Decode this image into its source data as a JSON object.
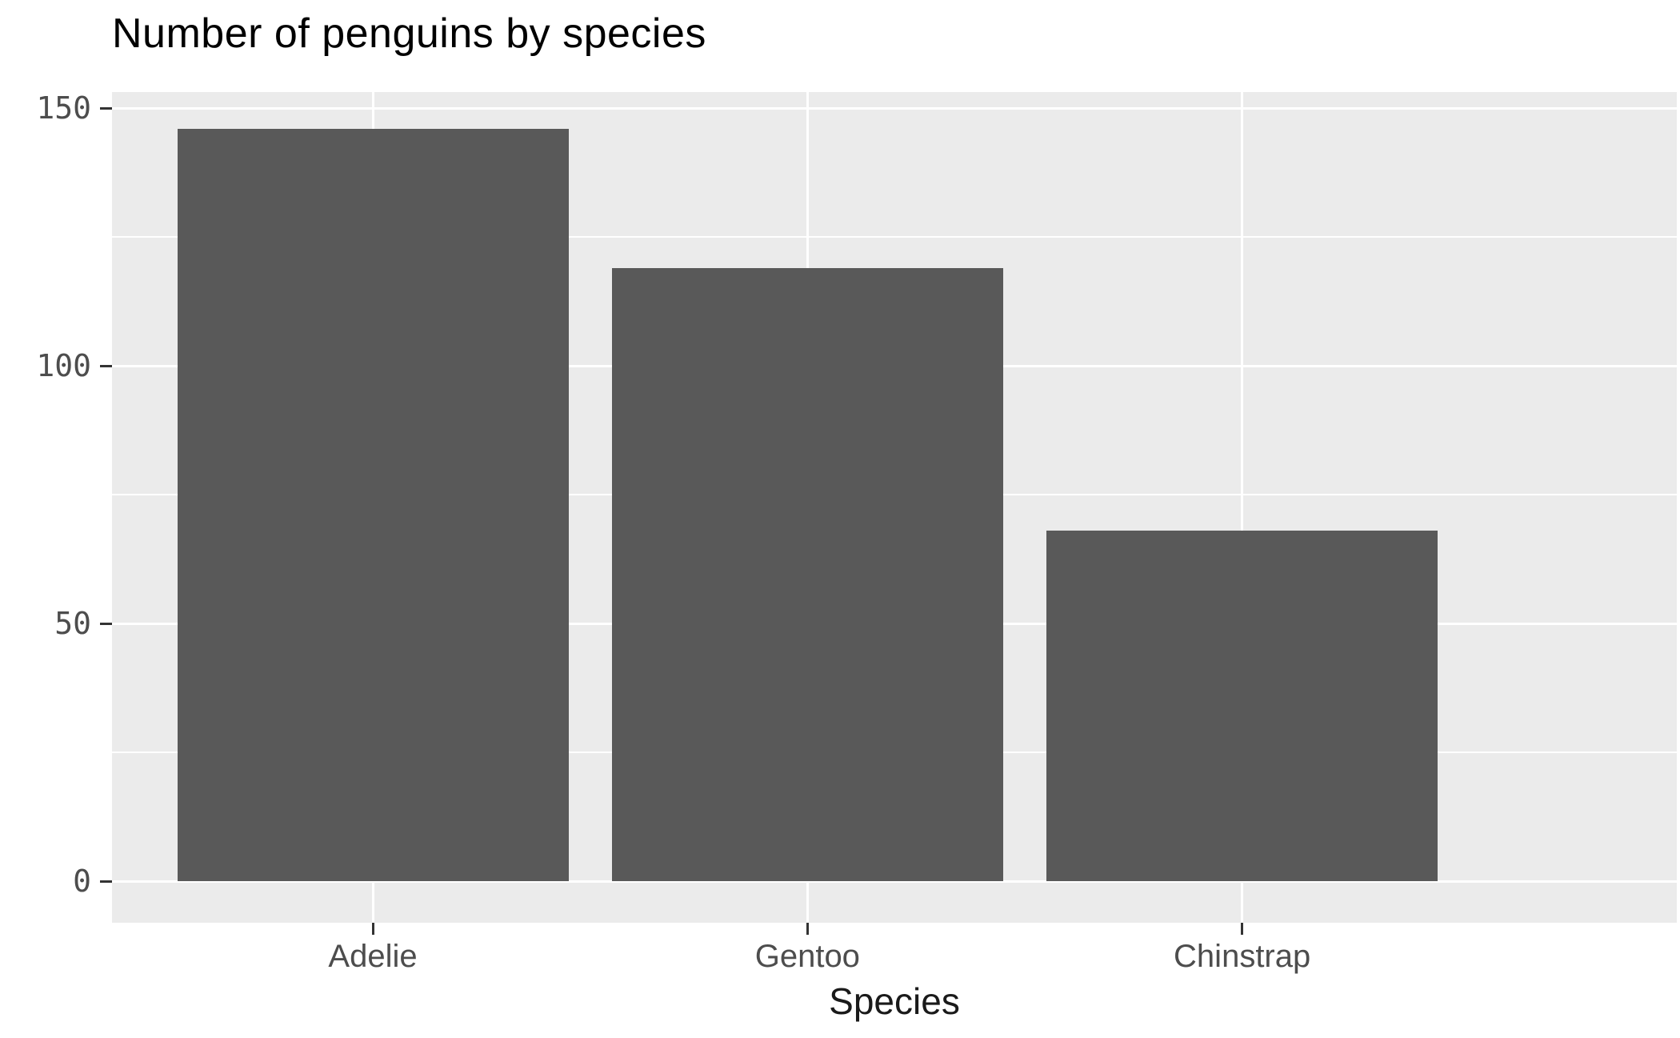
{
  "chart_data": {
    "type": "bar",
    "title": "Number of penguins by species",
    "xlabel": "Species",
    "ylabel": "",
    "categories": [
      "Adelie",
      "Gentoo",
      "Chinstrap"
    ],
    "values": [
      146,
      119,
      68
    ],
    "ylim": [
      0,
      150
    ],
    "yticks": [
      0,
      50,
      100,
      150
    ],
    "yminor": [
      25,
      75,
      125
    ],
    "legend_position": "none",
    "grid": "on",
    "colors": {
      "bar_fill": "#595959",
      "panel_background": "#EBEBEB",
      "gridline": "#FFFFFF",
      "axis_text": "#4D4D4D",
      "tick_mark": "#333333",
      "title_text": "#000000"
    }
  }
}
